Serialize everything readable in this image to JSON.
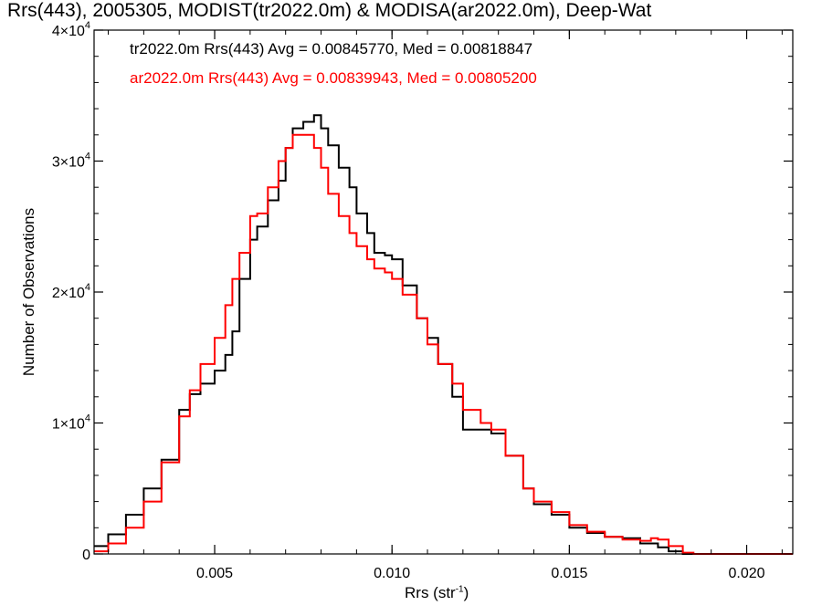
{
  "title": "Rrs(443), 2005305, MODIST(tr2022.0m) & MODISA(ar2022.0m), Deep-Wat",
  "chart_data": {
    "type": "line",
    "title": "Rrs(443), 2005305, MODIST(tr2022.0m) & MODISA(ar2022.0m), Deep-Wat",
    "xlabel": "Rrs (str",
    "xlabel_exp": "-1",
    "xlabel_close": ")",
    "ylabel": "Number of Observations",
    "xlim": [
      0.0016,
      0.0213
    ],
    "ylim": [
      0,
      40000
    ],
    "xticks": [
      0.005,
      0.01,
      0.015,
      0.02
    ],
    "xtick_labels": [
      "0.005",
      "0.010",
      "0.015",
      "0.020"
    ],
    "yticks": [
      0,
      10000,
      20000,
      30000,
      40000
    ],
    "ytick_labels": [
      {
        "mantissa": "0",
        "exp": ""
      },
      {
        "mantissa": "1×10",
        "exp": "4"
      },
      {
        "mantissa": "2×10",
        "exp": "4"
      },
      {
        "mantissa": "3×10",
        "exp": "4"
      },
      {
        "mantissa": "4×10",
        "exp": "4"
      }
    ],
    "legend_placement": "top-left",
    "grid": false,
    "series": [
      {
        "name": "tr2022.0m",
        "color": "#000000",
        "legend_text": "tr2022.0m Rrs(443) Avg = 0.00845770, Med = 0.00818847",
        "points": [
          [
            0.0016,
            600
          ],
          [
            0.002,
            1500
          ],
          [
            0.0025,
            3000
          ],
          [
            0.003,
            5000
          ],
          [
            0.0035,
            7200
          ],
          [
            0.004,
            11000
          ],
          [
            0.0043,
            12200
          ],
          [
            0.0046,
            13000
          ],
          [
            0.005,
            14000
          ],
          [
            0.0053,
            15200
          ],
          [
            0.0055,
            17000
          ],
          [
            0.0057,
            21000
          ],
          [
            0.006,
            24000
          ],
          [
            0.0062,
            25000
          ],
          [
            0.0065,
            27000
          ],
          [
            0.0068,
            28500
          ],
          [
            0.007,
            31000
          ],
          [
            0.0072,
            32500
          ],
          [
            0.0075,
            33000
          ],
          [
            0.0078,
            33500
          ],
          [
            0.008,
            32500
          ],
          [
            0.0082,
            31200
          ],
          [
            0.0085,
            29500
          ],
          [
            0.0088,
            28000
          ],
          [
            0.009,
            26000
          ],
          [
            0.0093,
            24500
          ],
          [
            0.0095,
            23000
          ],
          [
            0.0098,
            22800
          ],
          [
            0.01,
            22500
          ],
          [
            0.0103,
            20500
          ],
          [
            0.0107,
            18000
          ],
          [
            0.011,
            16500
          ],
          [
            0.0113,
            14500
          ],
          [
            0.0117,
            12000
          ],
          [
            0.012,
            9500
          ],
          [
            0.0125,
            9500
          ],
          [
            0.0128,
            9200
          ],
          [
            0.0132,
            7500
          ],
          [
            0.0137,
            5000
          ],
          [
            0.014,
            3800
          ],
          [
            0.0145,
            3000
          ],
          [
            0.015,
            2000
          ],
          [
            0.0155,
            1600
          ],
          [
            0.016,
            1300
          ],
          [
            0.0165,
            1200
          ],
          [
            0.017,
            800
          ],
          [
            0.0175,
            500
          ],
          [
            0.0178,
            200
          ],
          [
            0.0182,
            0
          ],
          [
            0.0213,
            0
          ]
        ]
      },
      {
        "name": "ar2022.0m",
        "color": "#ff0000",
        "legend_text": "ar2022.0m Rrs(443) Avg = 0.00839943, Med = 0.00805200",
        "points": [
          [
            0.0016,
            200
          ],
          [
            0.002,
            800
          ],
          [
            0.0025,
            2000
          ],
          [
            0.003,
            4000
          ],
          [
            0.0035,
            7000
          ],
          [
            0.004,
            10500
          ],
          [
            0.0043,
            12500
          ],
          [
            0.0046,
            14500
          ],
          [
            0.005,
            16500
          ],
          [
            0.0053,
            19000
          ],
          [
            0.0055,
            21000
          ],
          [
            0.0057,
            23000
          ],
          [
            0.006,
            25800
          ],
          [
            0.0062,
            26000
          ],
          [
            0.0065,
            28000
          ],
          [
            0.0068,
            30000
          ],
          [
            0.007,
            31000
          ],
          [
            0.0072,
            32000
          ],
          [
            0.0075,
            32000
          ],
          [
            0.0078,
            31000
          ],
          [
            0.008,
            29500
          ],
          [
            0.0082,
            27500
          ],
          [
            0.0085,
            25800
          ],
          [
            0.0088,
            24500
          ],
          [
            0.009,
            23500
          ],
          [
            0.0093,
            22500
          ],
          [
            0.0095,
            21800
          ],
          [
            0.0098,
            21500
          ],
          [
            0.01,
            21000
          ],
          [
            0.0103,
            19800
          ],
          [
            0.0107,
            18000
          ],
          [
            0.011,
            16000
          ],
          [
            0.0113,
            14500
          ],
          [
            0.0117,
            13000
          ],
          [
            0.012,
            11000
          ],
          [
            0.0125,
            10000
          ],
          [
            0.0128,
            9500
          ],
          [
            0.0132,
            7500
          ],
          [
            0.0137,
            5000
          ],
          [
            0.014,
            4000
          ],
          [
            0.0145,
            3200
          ],
          [
            0.015,
            2200
          ],
          [
            0.0155,
            1700
          ],
          [
            0.016,
            1300
          ],
          [
            0.0165,
            1100
          ],
          [
            0.017,
            1000
          ],
          [
            0.0173,
            1200
          ],
          [
            0.0175,
            1100
          ],
          [
            0.0178,
            600
          ],
          [
            0.0182,
            100
          ],
          [
            0.0185,
            0
          ],
          [
            0.0213,
            0
          ]
        ]
      }
    ]
  }
}
